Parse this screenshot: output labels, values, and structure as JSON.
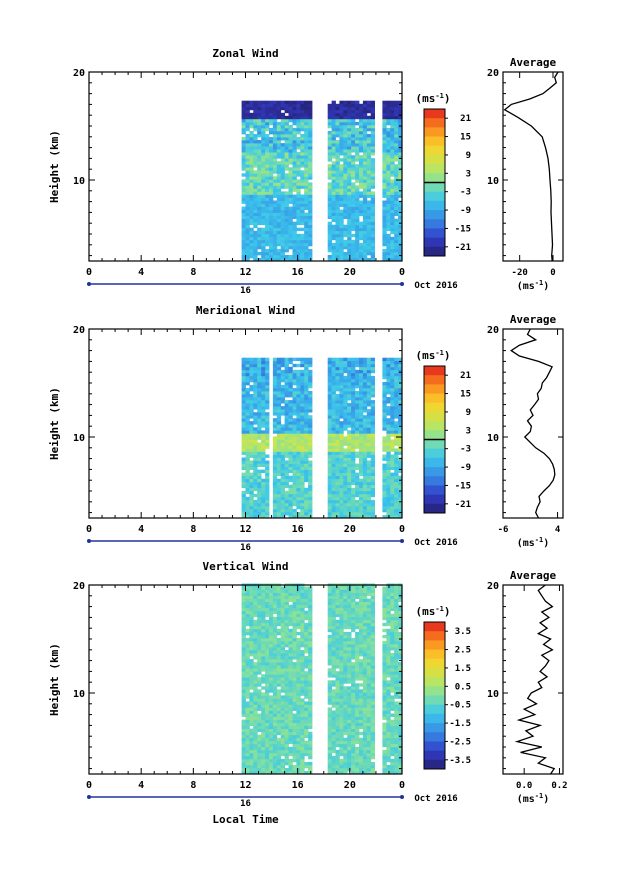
{
  "chart_data": [
    {
      "type": "heatmap",
      "title": "Zonal Wind",
      "xlabel": "",
      "ylabel": "Height (km)",
      "x_ticks": [
        "0",
        "4",
        "8",
        "12",
        "16",
        "20",
        "0"
      ],
      "y_ticks": [
        "10",
        "20"
      ],
      "ylim": [
        2.5,
        20
      ],
      "date_label": "16",
      "date_suffix": "Oct 2016",
      "colorbar": {
        "unit": "(ms⁻¹)",
        "ticks": [
          "21",
          "15",
          "9",
          "3",
          "-3",
          "-9",
          "-15",
          "-21"
        ],
        "range": [
          -24,
          24
        ],
        "zero_line": 0
      },
      "seed": 11,
      "gaps_hours": [
        [
          0,
          11.5
        ],
        [
          17.1,
          18.1
        ],
        [
          21.9,
          22.4
        ]
      ],
      "top_km": 17.3,
      "layers": [
        [
          2.5,
          8.5,
          0.35,
          0.05
        ],
        [
          8.5,
          12.5,
          0.45,
          0.1
        ],
        [
          12.5,
          15.5,
          0.38,
          0.12
        ],
        [
          15.5,
          17.3,
          0.06,
          0.04
        ]
      ],
      "average": {
        "title": "Average",
        "ticks": [
          "-20",
          "0"
        ],
        "unit": "(ms⁻¹)",
        "xlim": [
          -30,
          6
        ],
        "profile": [
          [
            2.5,
            -0.5
          ],
          [
            3,
            -0.8
          ],
          [
            4,
            -0.3
          ],
          [
            5,
            -0.6
          ],
          [
            6,
            -0.9
          ],
          [
            7,
            -1.2
          ],
          [
            8,
            -1.1
          ],
          [
            9,
            -1.3
          ],
          [
            10,
            -1.8
          ],
          [
            11,
            -2.2
          ],
          [
            12,
            -3.0
          ],
          [
            13,
            -4.5
          ],
          [
            14,
            -6.5
          ],
          [
            15,
            -13
          ],
          [
            15.8,
            -21
          ],
          [
            16.5,
            -29
          ],
          [
            17,
            -25
          ],
          [
            17.5,
            -14
          ],
          [
            18,
            -6
          ],
          [
            18.5,
            -2
          ],
          [
            19,
            2
          ],
          [
            19.5,
            1
          ],
          [
            20,
            3
          ]
        ]
      }
    },
    {
      "type": "heatmap",
      "title": "Meridional Wind",
      "xlabel": "",
      "ylabel": "Height (km)",
      "x_ticks": [
        "0",
        "4",
        "8",
        "12",
        "16",
        "20",
        "0"
      ],
      "y_ticks": [
        "10",
        "20"
      ],
      "ylim": [
        2.5,
        20
      ],
      "date_label": "16",
      "date_suffix": "Oct 2016",
      "colorbar": {
        "unit": "(ms⁻¹)",
        "ticks": [
          "21",
          "15",
          "9",
          "3",
          "-3",
          "-9",
          "-15",
          "-21"
        ],
        "range": [
          -24,
          24
        ],
        "zero_line": 0
      },
      "seed": 29,
      "gaps_hours": [
        [
          0,
          11.5
        ],
        [
          13.7,
          14.0
        ],
        [
          17.1,
          18.1
        ],
        [
          21.9,
          22.4
        ]
      ],
      "top_km": 17.3,
      "layers": [
        [
          2.5,
          8.5,
          0.42,
          0.07
        ],
        [
          8.5,
          10.2,
          0.58,
          0.06
        ],
        [
          10.2,
          15.5,
          0.35,
          0.08
        ],
        [
          15.5,
          17.3,
          0.32,
          0.1
        ]
      ],
      "average": {
        "title": "Average",
        "ticks": [
          "-6",
          "4"
        ],
        "unit": "(ms⁻¹)",
        "xlim": [
          -6,
          5
        ],
        "profile": [
          [
            2.5,
            0.5
          ],
          [
            3,
            0
          ],
          [
            3.5,
            0.3
          ],
          [
            4,
            0.8
          ],
          [
            4.5,
            0.6
          ],
          [
            5,
            1.5
          ],
          [
            5.5,
            2.5
          ],
          [
            6,
            3.2
          ],
          [
            6.5,
            3.5
          ],
          [
            7,
            3.4
          ],
          [
            7.5,
            3.1
          ],
          [
            8,
            2.5
          ],
          [
            8.5,
            1.5
          ],
          [
            9,
            0
          ],
          [
            9.5,
            -1
          ],
          [
            10,
            -2
          ],
          [
            10.5,
            -1
          ],
          [
            11,
            -0.8
          ],
          [
            11.5,
            -1.5
          ],
          [
            12,
            -0.5
          ],
          [
            12.5,
            -1
          ],
          [
            13,
            -0.2
          ],
          [
            13.5,
            0.5
          ],
          [
            14,
            0.3
          ],
          [
            14.5,
            1
          ],
          [
            15,
            1.2
          ],
          [
            15.5,
            2
          ],
          [
            16,
            2.5
          ],
          [
            16.5,
            3
          ],
          [
            17,
            0.5
          ],
          [
            17.5,
            -3
          ],
          [
            18,
            -4.5
          ],
          [
            18.5,
            -3
          ],
          [
            19,
            0
          ],
          [
            19.5,
            -1.5
          ],
          [
            20,
            -1
          ]
        ]
      }
    },
    {
      "type": "heatmap",
      "title": "Vertical Wind",
      "xlabel": "Local Time",
      "ylabel": "Height (km)",
      "x_ticks": [
        "0",
        "4",
        "8",
        "12",
        "16",
        "20",
        "0"
      ],
      "y_ticks": [
        "10",
        "20"
      ],
      "ylim": [
        2.5,
        20
      ],
      "date_label": "16",
      "date_suffix": "Oct 2016",
      "colorbar": {
        "unit": "(ms⁻¹)",
        "ticks": [
          "3.5",
          "2.5",
          "1.5",
          "0.5",
          "-0.5",
          "-1.5",
          "-2.5",
          "-3.5"
        ],
        "range": [
          -4,
          4
        ],
        "zero_line": null
      },
      "seed": 53,
      "gaps_hours": [
        [
          0,
          11.5
        ],
        [
          17.1,
          18.1
        ],
        [
          21.9,
          22.4
        ]
      ],
      "top_km": 20,
      "layers": [
        [
          2.5,
          20,
          0.46,
          0.06
        ]
      ],
      "average": {
        "title": "Average",
        "ticks": [
          "0.0",
          "0.2"
        ],
        "unit": "(ms⁻¹)",
        "xlim": [
          -0.12,
          0.22
        ],
        "profile": [
          [
            2.5,
            0.15
          ],
          [
            3,
            0.17
          ],
          [
            3.5,
            0.08
          ],
          [
            4,
            0.12
          ],
          [
            4.5,
            -0.02
          ],
          [
            5,
            0.1
          ],
          [
            5.5,
            -0.04
          ],
          [
            6,
            0.05
          ],
          [
            6.5,
            0.01
          ],
          [
            7,
            0.09
          ],
          [
            7.5,
            -0.03
          ],
          [
            8,
            0.06
          ],
          [
            8.5,
            0.0
          ],
          [
            9,
            0.07
          ],
          [
            9.5,
            0.02
          ],
          [
            10,
            0.04
          ],
          [
            10.5,
            0.1
          ],
          [
            11,
            0.08
          ],
          [
            11.5,
            0.13
          ],
          [
            12,
            0.09
          ],
          [
            12.5,
            0.12
          ],
          [
            13,
            0.14
          ],
          [
            13.5,
            0.1
          ],
          [
            14,
            0.16
          ],
          [
            14.5,
            0.11
          ],
          [
            15,
            0.15
          ],
          [
            15.5,
            0.08
          ],
          [
            16,
            0.13
          ],
          [
            16.5,
            0.09
          ],
          [
            17,
            0.14
          ],
          [
            17.5,
            0.1
          ],
          [
            18,
            0.16
          ],
          [
            18.5,
            0.12
          ],
          [
            19,
            0.1
          ],
          [
            19.5,
            0.08
          ],
          [
            20,
            0.12
          ]
        ]
      }
    }
  ]
}
